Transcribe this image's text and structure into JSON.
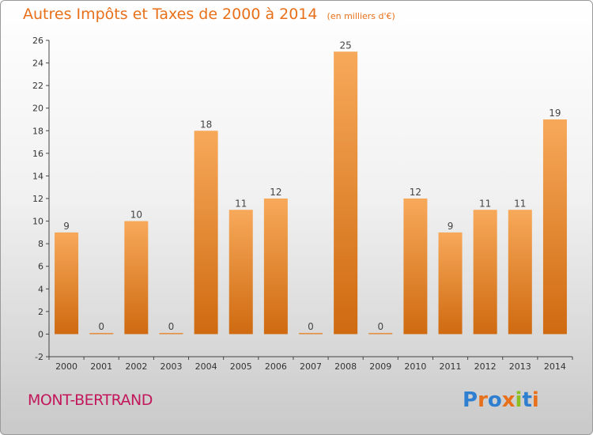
{
  "colors": {
    "title": "#e8701a",
    "commune": "#c2185b",
    "bar_top": "#f7a95a",
    "bar_bottom": "#cf6a10"
  },
  "chart_data": {
    "type": "bar",
    "title": "Autres Impôts et Taxes de 2000 à 2014",
    "subtitle": "(en milliers d'€)",
    "categories": [
      "2000",
      "2001",
      "2002",
      "2003",
      "2004",
      "2005",
      "2006",
      "2007",
      "2008",
      "2009",
      "2010",
      "2011",
      "2012",
      "2013",
      "2014"
    ],
    "values": [
      9,
      0,
      10,
      0,
      18,
      11,
      12,
      0,
      25,
      0,
      12,
      9,
      11,
      11,
      19
    ],
    "ylim": [
      -2,
      26
    ],
    "yticks": [
      -2,
      0,
      2,
      4,
      6,
      8,
      10,
      12,
      14,
      16,
      18,
      20,
      22,
      24,
      26
    ],
    "grid": false,
    "xlabel": "",
    "ylabel": ""
  },
  "commune": "MONT-BERTRAND",
  "logo": {
    "text": "Proxiti",
    "letter_colors": [
      "#2f7fd1",
      "#e8701a",
      "#2f7fd1",
      "#e8701a",
      "#8bbf1f",
      "#2f7fd1",
      "#e8701a"
    ]
  }
}
